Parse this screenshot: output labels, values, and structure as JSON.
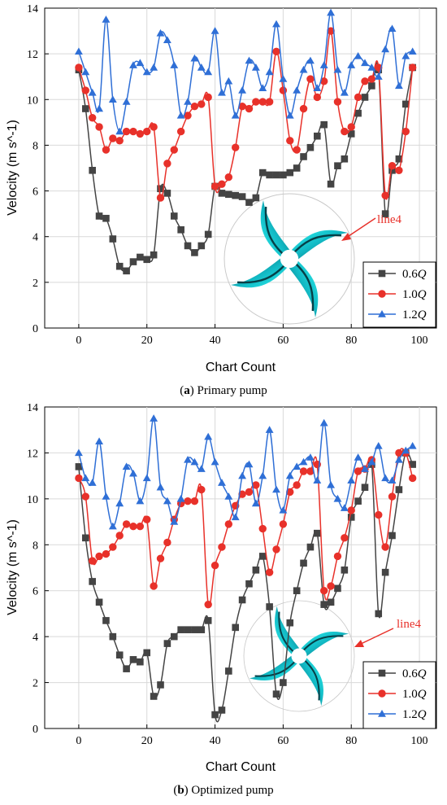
{
  "figure": {
    "panels": [
      {
        "caption_letter": "a",
        "caption_text": ") Primary pump",
        "annotation": "line4"
      },
      {
        "caption_letter": "b",
        "caption_text": ") Optimized pump",
        "annotation": "line4"
      }
    ]
  },
  "chart_data": [
    {
      "type": "line",
      "title": "",
      "xlabel": "Chart Count",
      "ylabel": "Velocity (m s^-1)",
      "xlim": [
        -10,
        105
      ],
      "ylim": [
        0,
        14
      ],
      "xticks": [
        0,
        20,
        40,
        60,
        80,
        100
      ],
      "yticks": [
        0,
        2,
        4,
        6,
        8,
        10,
        12,
        14
      ],
      "grid": true,
      "legend_position": "bottom-right",
      "x": [
        0,
        2,
        4,
        6,
        8,
        10,
        12,
        14,
        16,
        18,
        20,
        22,
        24,
        26,
        28,
        30,
        32,
        34,
        36,
        38,
        40,
        42,
        44,
        46,
        48,
        50,
        52,
        54,
        56,
        58,
        60,
        62,
        64,
        66,
        68,
        70,
        72,
        74,
        76,
        78,
        80,
        82,
        84,
        86,
        88,
        90,
        92,
        94,
        96,
        98
      ],
      "series": [
        {
          "name": "0.6Q",
          "name_main": "0.6",
          "name_italic": "Q",
          "color": "#444444",
          "marker": "square",
          "values": [
            11.3,
            9.6,
            6.9,
            4.9,
            4.8,
            3.9,
            2.7,
            2.5,
            2.9,
            3.1,
            3.0,
            3.2,
            6.1,
            5.9,
            4.9,
            4.3,
            3.6,
            3.3,
            3.6,
            4.1,
            6.2,
            5.9,
            5.85,
            5.8,
            5.75,
            5.5,
            5.7,
            6.8,
            6.7,
            6.7,
            6.7,
            6.8,
            7.0,
            7.5,
            7.9,
            8.4,
            8.9,
            6.3,
            7.1,
            7.4,
            8.5,
            9.4,
            10.1,
            10.6,
            11.3,
            5.0,
            6.9,
            7.4,
            9.8,
            11.4
          ]
        },
        {
          "name": "1.0Q",
          "name_main": "1.0",
          "name_italic": "Q",
          "color": "#e8312a",
          "marker": "circle",
          "values": [
            11.4,
            10.4,
            9.2,
            8.8,
            7.8,
            8.3,
            8.2,
            8.6,
            8.6,
            8.5,
            8.6,
            8.8,
            5.7,
            7.2,
            7.8,
            8.6,
            9.3,
            9.7,
            9.8,
            10.1,
            6.2,
            6.3,
            6.6,
            7.9,
            9.7,
            9.6,
            9.9,
            9.9,
            9.9,
            12.1,
            10.4,
            8.2,
            7.8,
            9.6,
            10.9,
            10.1,
            10.8,
            13.0,
            9.9,
            8.6,
            8.8,
            10.1,
            10.8,
            10.9,
            11.4,
            5.8,
            7.1,
            6.9,
            8.6,
            11.4
          ]
        },
        {
          "name": "1.2Q",
          "name_main": "1.2",
          "name_italic": "Q",
          "color": "#2f6fd6",
          "marker": "triangle",
          "values": [
            12.1,
            11.2,
            10.3,
            9.6,
            13.5,
            10.0,
            8.6,
            9.9,
            11.5,
            11.6,
            11.2,
            11.4,
            12.9,
            12.6,
            11.5,
            9.3,
            9.9,
            11.8,
            11.4,
            11.2,
            13.0,
            10.3,
            10.8,
            9.3,
            10.4,
            11.7,
            11.4,
            10.5,
            11.2,
            13.3,
            10.9,
            9.3,
            10.4,
            11.3,
            11.7,
            10.5,
            11.5,
            13.8,
            11.3,
            10.3,
            11.5,
            11.9,
            11.6,
            11.4,
            11.0,
            12.2,
            13.1,
            10.6,
            11.9,
            12.1
          ]
        }
      ]
    },
    {
      "type": "line",
      "title": "",
      "xlabel": "Chart Count",
      "ylabel": "Velocity (m s^-1)",
      "xlim": [
        -10,
        105
      ],
      "ylim": [
        0,
        14
      ],
      "xticks": [
        0,
        20,
        40,
        60,
        80,
        100
      ],
      "yticks": [
        0,
        2,
        4,
        6,
        8,
        10,
        12,
        14
      ],
      "grid": true,
      "legend_position": "bottom-right",
      "x": [
        0,
        2,
        4,
        6,
        8,
        10,
        12,
        14,
        16,
        18,
        20,
        22,
        24,
        26,
        28,
        30,
        32,
        34,
        36,
        38,
        40,
        42,
        44,
        46,
        48,
        50,
        52,
        54,
        56,
        58,
        60,
        62,
        64,
        66,
        68,
        70,
        72,
        74,
        76,
        78,
        80,
        82,
        84,
        86,
        88,
        90,
        92,
        94,
        96,
        98
      ],
      "series": [
        {
          "name": "0.6Q",
          "name_main": "0.6",
          "name_italic": "Q",
          "color": "#444444",
          "marker": "square",
          "values": [
            11.4,
            8.3,
            6.4,
            5.5,
            4.7,
            4.0,
            3.2,
            2.6,
            3.0,
            2.9,
            3.3,
            1.4,
            1.9,
            3.7,
            4.0,
            4.3,
            4.3,
            4.3,
            4.3,
            4.7,
            0.6,
            0.8,
            2.5,
            4.4,
            5.6,
            6.3,
            6.9,
            7.5,
            5.3,
            1.5,
            2.0,
            4.6,
            6.0,
            7.2,
            7.9,
            8.5,
            5.4,
            5.5,
            6.1,
            6.9,
            9.2,
            9.9,
            10.5,
            11.5,
            5.0,
            6.8,
            8.4,
            10.4,
            12.0,
            11.5
          ]
        },
        {
          "name": "1.0Q",
          "name_main": "1.0",
          "name_italic": "Q",
          "color": "#e8312a",
          "marker": "circle",
          "values": [
            10.9,
            10.1,
            7.3,
            7.5,
            7.6,
            7.9,
            8.4,
            8.9,
            8.8,
            8.8,
            9.1,
            6.2,
            7.4,
            8.1,
            9.1,
            9.8,
            9.9,
            9.9,
            10.4,
            5.4,
            7.1,
            7.9,
            8.9,
            9.7,
            10.2,
            10.3,
            10.6,
            8.7,
            6.8,
            7.8,
            8.9,
            10.3,
            10.6,
            11.2,
            11.2,
            11.5,
            6.0,
            6.2,
            7.5,
            8.3,
            9.5,
            11.2,
            11.3,
            11.7,
            9.3,
            7.9,
            10.1,
            12.0,
            12.0,
            10.9
          ]
        },
        {
          "name": "1.2Q",
          "name_main": "1.2",
          "name_italic": "Q",
          "color": "#2f6fd6",
          "marker": "triangle",
          "values": [
            12.0,
            10.9,
            10.7,
            12.5,
            10.1,
            8.8,
            9.8,
            11.4,
            11.1,
            9.9,
            10.9,
            13.5,
            10.5,
            9.9,
            9.0,
            10.0,
            11.7,
            11.6,
            11.3,
            12.7,
            11.6,
            10.7,
            10.1,
            9.2,
            11.0,
            11.5,
            9.8,
            11.0,
            13.0,
            10.4,
            9.5,
            11.0,
            11.4,
            11.6,
            11.8,
            10.8,
            13.3,
            10.6,
            10.0,
            9.6,
            10.8,
            11.8,
            11.3,
            11.6,
            12.3,
            10.9,
            10.8,
            11.7,
            12.1,
            12.3
          ]
        }
      ]
    }
  ]
}
